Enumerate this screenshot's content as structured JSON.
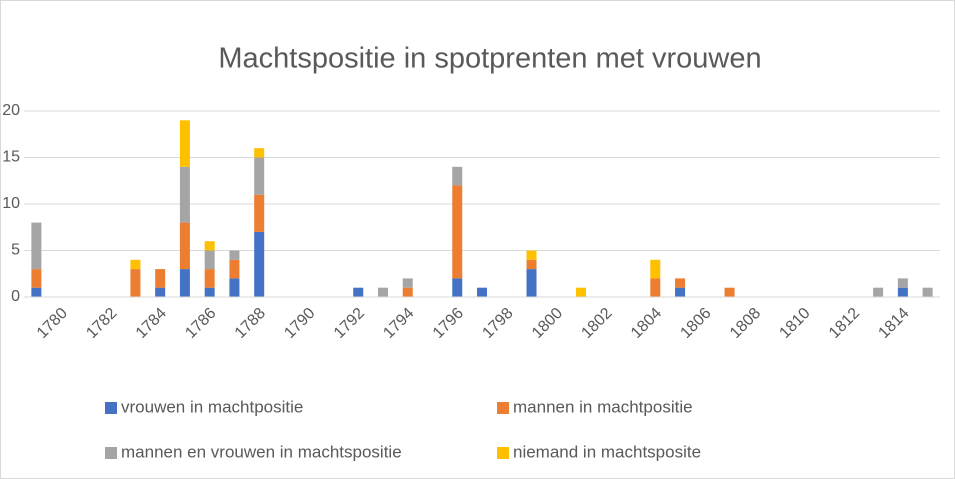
{
  "chart_data": {
    "type": "bar",
    "stacked": true,
    "title": "Machtspositie in spotprenten met vrouwen",
    "categories": [
      null,
      1780,
      null,
      1782,
      null,
      1784,
      null,
      1786,
      null,
      1788,
      null,
      1790,
      null,
      1792,
      null,
      1794,
      null,
      1796,
      null,
      1798,
      null,
      1800,
      null,
      1802,
      null,
      1804,
      null,
      1806,
      null,
      1808,
      null,
      1810,
      null,
      1812,
      null,
      1814,
      null
    ],
    "series": [
      {
        "name": "vrouwen in machtpositie",
        "color": "#4472c4",
        "values": [
          1,
          0,
          0,
          0,
          0,
          1,
          3,
          1,
          2,
          7,
          0,
          0,
          0,
          1,
          0,
          0,
          0,
          2,
          1,
          0,
          3,
          0,
          0,
          0,
          0,
          0,
          1,
          0,
          0,
          0,
          0,
          0,
          0,
          0,
          0,
          1,
          0
        ]
      },
      {
        "name": "mannen in machtpositie",
        "color": "#ed7d31",
        "values": [
          2,
          0,
          0,
          0,
          3,
          2,
          5,
          2,
          2,
          4,
          0,
          0,
          0,
          0,
          0,
          1,
          0,
          10,
          0,
          0,
          1,
          0,
          0,
          0,
          0,
          2,
          1,
          0,
          1,
          0,
          0,
          0,
          0,
          0,
          0,
          0,
          0
        ]
      },
      {
        "name": "mannen en vrouwen in machtspositie",
        "color": "#a5a5a5",
        "values": [
          5,
          0,
          0,
          0,
          0,
          0,
          6,
          2,
          1,
          4,
          0,
          0,
          0,
          0,
          1,
          1,
          0,
          2,
          0,
          0,
          0,
          0,
          0,
          0,
          0,
          0,
          0,
          0,
          0,
          0,
          0,
          0,
          0,
          0,
          1,
          1,
          1
        ]
      },
      {
        "name": "niemand in machtsposite",
        "color": "#ffc000",
        "values": [
          0,
          0,
          0,
          0,
          1,
          0,
          5,
          1,
          0,
          1,
          0,
          0,
          0,
          0,
          0,
          0,
          0,
          0,
          0,
          0,
          1,
          0,
          1,
          0,
          0,
          2,
          0,
          0,
          0,
          0,
          0,
          0,
          0,
          0,
          0,
          0,
          0
        ]
      }
    ],
    "ylim": [
      0,
      20
    ],
    "yticks": [
      0,
      5,
      10,
      15,
      20
    ],
    "grid": true,
    "legend": "bottom"
  }
}
